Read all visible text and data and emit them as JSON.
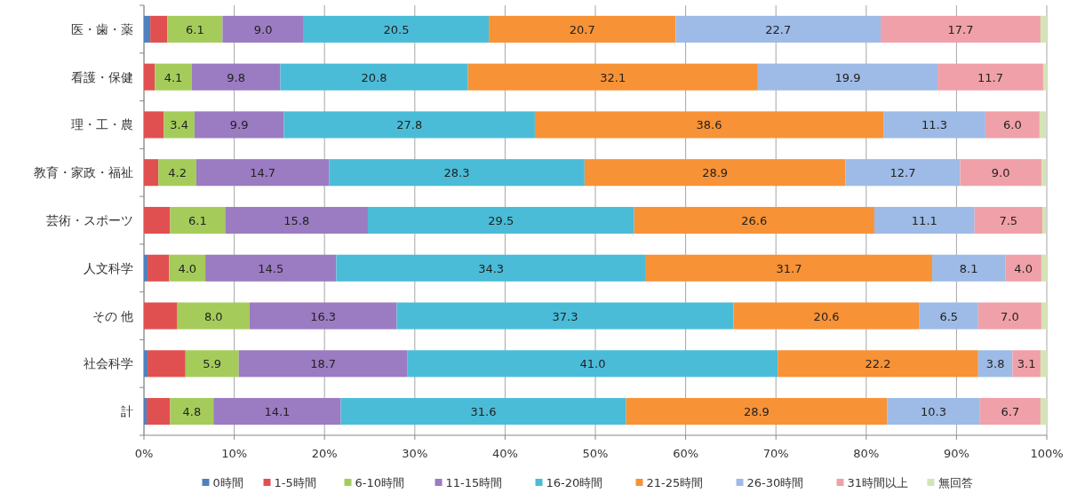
{
  "chart_data": {
    "type": "bar",
    "orientation": "horizontal",
    "stacked": true,
    "categories": [
      "医・歯・薬",
      "看護・保健",
      "理・工・農",
      "教育・家政・福祉",
      "芸術・スポーツ",
      "人文科学",
      "その 他",
      "社会科学",
      "計"
    ],
    "xlim": [
      0,
      100
    ],
    "xticks": [
      {
        "value": 0,
        "label": "0%"
      },
      {
        "value": 10,
        "label": "10%"
      },
      {
        "value": 20,
        "label": "20%"
      },
      {
        "value": 30,
        "label": "30%"
      },
      {
        "value": 40,
        "label": "40%"
      },
      {
        "value": 50,
        "label": "50%"
      },
      {
        "value": 60,
        "label": "60%"
      },
      {
        "value": 70,
        "label": "70%"
      },
      {
        "value": 80,
        "label": "80%"
      },
      {
        "value": 90,
        "label": "90%"
      },
      {
        "value": 100,
        "label": "100%"
      }
    ],
    "grid": "x",
    "legend": "bottom",
    "series": [
      {
        "name": "0時間",
        "color": "#4f81bd",
        "values": [
          0.7,
          null,
          null,
          null,
          null,
          0.4,
          null,
          0.4,
          0.3
        ]
      },
      {
        "name": "1-5時間",
        "color": "#e05050",
        "values": [
          1.9,
          1.2,
          2.2,
          1.6,
          2.9,
          2.4,
          3.7,
          4.2,
          2.6
        ]
      },
      {
        "name": "6-10時間",
        "color": "#a5cc5a",
        "values": [
          6.1,
          4.1,
          3.4,
          4.2,
          6.1,
          4.0,
          8.0,
          5.9,
          4.8
        ],
        "value_labels": [
          "6.1",
          "4.1",
          "3.4",
          "4.2",
          "6.1",
          "4.0",
          "8.0",
          "5.9",
          "4.8"
        ]
      },
      {
        "name": "11-15時間",
        "color": "#9b7bc2",
        "values": [
          9.0,
          9.8,
          9.9,
          14.7,
          15.8,
          14.5,
          16.3,
          18.7,
          14.1
        ],
        "value_labels": [
          "9.0",
          "9.8",
          "9.9",
          "14.7",
          "15.8",
          "14.5",
          "16.3",
          "18.7",
          "14.1"
        ]
      },
      {
        "name": "16-20時間",
        "color": "#4bbcd8",
        "values": [
          20.5,
          20.8,
          27.8,
          28.3,
          29.5,
          34.3,
          37.3,
          41.0,
          31.6
        ],
        "value_labels": [
          "20.5",
          "20.8",
          "27.8",
          "28.3",
          "29.5",
          "34.3",
          "37.3",
          "41.0",
          "31.6"
        ]
      },
      {
        "name": "21-25時間",
        "color": "#f79236",
        "values": [
          20.7,
          32.1,
          38.6,
          28.9,
          26.6,
          31.7,
          20.6,
          22.2,
          28.9
        ],
        "value_labels": [
          "20.7",
          "32.1",
          "38.6",
          "28.9",
          "26.6",
          "31.7",
          "20.6",
          "22.2",
          "28.9"
        ]
      },
      {
        "name": "26-30時間",
        "color": "#9dbbe6",
        "values": [
          22.7,
          19.9,
          11.3,
          12.7,
          11.1,
          8.1,
          6.5,
          3.8,
          10.3
        ],
        "value_labels": [
          "22.7",
          "19.9",
          "11.3",
          "12.7",
          "11.1",
          "8.1",
          "6.5",
          "3.8",
          "10.3"
        ]
      },
      {
        "name": "31時間以上",
        "color": "#f0a0a8",
        "values": [
          17.7,
          11.7,
          6.0,
          9.0,
          7.5,
          4.0,
          7.0,
          3.1,
          6.7
        ],
        "value_labels": [
          "17.7",
          "11.7",
          "6.0",
          "9.0",
          "7.5",
          "4.0",
          "7.0",
          "3.1",
          "6.7"
        ]
      },
      {
        "name": "無回答",
        "color": "#d4e4b4",
        "values": [
          0.7,
          0.4,
          0.7,
          0.5,
          0.4,
          0.6,
          0.6,
          0.7,
          0.7
        ]
      }
    ]
  }
}
